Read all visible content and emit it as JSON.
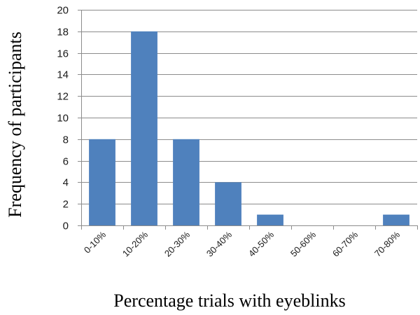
{
  "chart_data": {
    "type": "bar",
    "title": "",
    "xlabel": "Percentage trials with eyeblinks",
    "ylabel": "Frequency of participants",
    "categories": [
      "0-10%",
      "10-20%",
      "20-30%",
      "30-40%",
      "40-50%",
      "50-60%",
      "60-70%",
      "70-80%"
    ],
    "values": [
      8,
      18,
      8,
      4,
      1,
      0,
      0,
      1
    ],
    "ylim": [
      0,
      20
    ],
    "yticks": [
      0,
      2,
      4,
      6,
      8,
      10,
      12,
      14,
      16,
      18,
      20
    ],
    "grid": true,
    "legend": "none",
    "bar_color": "#4f81bd"
  }
}
